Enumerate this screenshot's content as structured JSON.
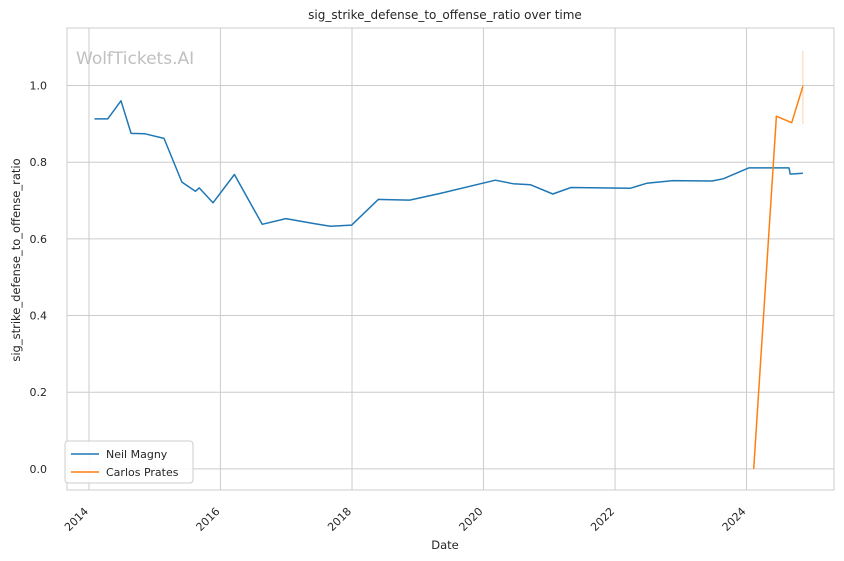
{
  "chart_data": {
    "type": "line",
    "title": "sig_strike_defense_to_offense_ratio over time",
    "xlabel": "Date",
    "ylabel": "sig_strike_defense_to_offense_ratio",
    "watermark": "WolfTickets.AI",
    "xlim": [
      "2013-09-01",
      "2025-05-01"
    ],
    "ylim": [
      -0.055,
      1.15
    ],
    "x_ticks": [
      "2014",
      "2016",
      "2018",
      "2020",
      "2022",
      "2024"
    ],
    "y_ticks": [
      "0.0",
      "0.2",
      "0.4",
      "0.6",
      "0.8",
      "1.0"
    ],
    "grid": true,
    "legend_position": "lower-left",
    "series": [
      {
        "name": "Neil Magny",
        "color": "#1f77b4",
        "points": [
          [
            "2014-02-01",
            0.913
          ],
          [
            "2014-04-15",
            0.913
          ],
          [
            "2014-06-28",
            0.96
          ],
          [
            "2014-08-23",
            0.875
          ],
          [
            "2014-11-08",
            0.874
          ],
          [
            "2015-02-22",
            0.862
          ],
          [
            "2015-06-01",
            0.748
          ],
          [
            "2015-08-15",
            0.724
          ],
          [
            "2015-09-05",
            0.733
          ],
          [
            "2015-11-21",
            0.694
          ],
          [
            "2016-03-19",
            0.768
          ],
          [
            "2016-08-20",
            0.638
          ],
          [
            "2016-12-30",
            0.653
          ],
          [
            "2017-06-01",
            0.64
          ],
          [
            "2017-09-02",
            0.633
          ],
          [
            "2017-12-30",
            0.636
          ],
          [
            "2018-05-27",
            0.703
          ],
          [
            "2018-11-17",
            0.701
          ],
          [
            "2019-05-01",
            0.718
          ],
          [
            "2020-03-07",
            0.753
          ],
          [
            "2020-06-13",
            0.744
          ],
          [
            "2020-09-19",
            0.741
          ],
          [
            "2021-01-20",
            0.717
          ],
          [
            "2021-05-01",
            0.734
          ],
          [
            "2022-03-26",
            0.732
          ],
          [
            "2022-06-25",
            0.745
          ],
          [
            "2022-11-19",
            0.752
          ],
          [
            "2023-06-24",
            0.751
          ],
          [
            "2023-08-26",
            0.757
          ],
          [
            "2024-01-13",
            0.785
          ],
          [
            "2024-08-24",
            0.785
          ],
          [
            "2024-08-31",
            0.769
          ],
          [
            "2024-11-09",
            0.771
          ]
        ]
      },
      {
        "name": "Carlos Prates",
        "color": "#ff7f0e",
        "points": [
          [
            "2024-02-10",
            0.0
          ],
          [
            "2024-06-15",
            0.92
          ],
          [
            "2024-09-08",
            0.903
          ],
          [
            "2024-11-09",
            0.998
          ]
        ],
        "error_band": {
          "x": "2024-11-09",
          "low": 0.9,
          "high": 1.09
        }
      }
    ]
  }
}
